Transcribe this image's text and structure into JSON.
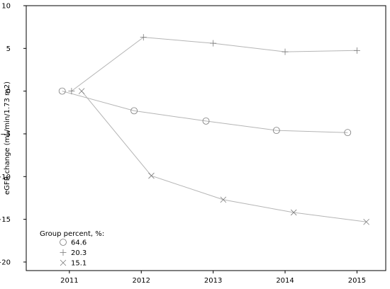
{
  "chart_data": {
    "type": "line",
    "title": "",
    "xlabel": "",
    "ylabel": "eGFR change (mL/min/1.73 m2)",
    "x": [
      2011,
      2012,
      2013,
      2014,
      2015
    ],
    "xticks": [
      "2011",
      "2012",
      "2013",
      "2014",
      "2015"
    ],
    "yticks": [
      "10",
      "5",
      "0",
      "−5",
      "−10",
      "−15",
      "−20"
    ],
    "ylim": [
      -21,
      10
    ],
    "xlim": [
      2010.4,
      2015.4
    ],
    "grid": false,
    "legend_title": "Group percent, %:",
    "legend_position": "bottom-left",
    "series": [
      {
        "name": "64.6",
        "marker": "circle",
        "x": [
          2010.9,
          2011.9,
          2012.9,
          2013.88,
          2014.87
        ],
        "values": [
          0,
          -2.3,
          -3.5,
          -4.6,
          -4.85
        ]
      },
      {
        "name": "20.3",
        "marker": "plus",
        "x": [
          2011.03,
          2012.03,
          2013.0,
          2014.0,
          2015.0
        ],
        "values": [
          0,
          6.3,
          5.6,
          4.6,
          4.75
        ]
      },
      {
        "name": "15.1",
        "marker": "x",
        "x": [
          2011.17,
          2012.14,
          2013.14,
          2014.12,
          2015.13
        ],
        "values": [
          0,
          -9.9,
          -12.7,
          -14.2,
          -15.3
        ]
      }
    ],
    "colors": {
      "line": "#b5b5b5",
      "marker": "#7a7a7a",
      "axis": "#000000"
    }
  }
}
